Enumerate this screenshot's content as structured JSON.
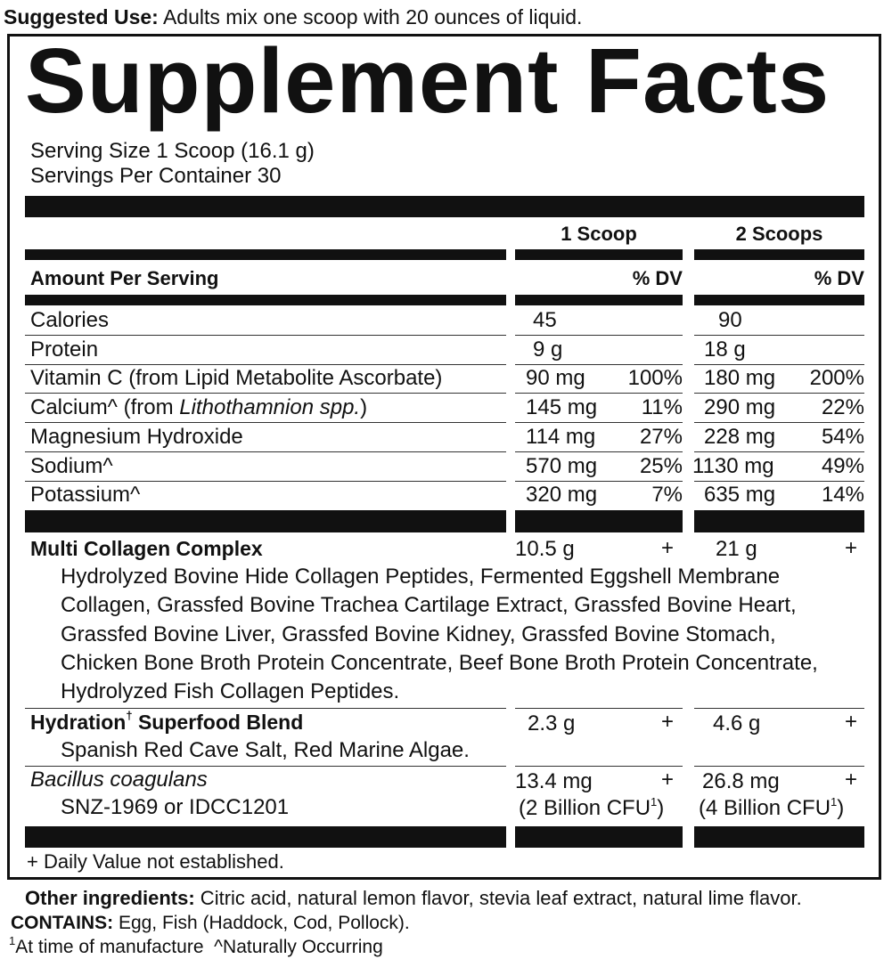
{
  "suggested_use": {
    "label": "Suggested Use:",
    "text": " Adults mix one scoop with 20 ounces of liquid."
  },
  "title": "Supplement Facts",
  "serving_size": "Serving Size 1 Scoop (16.1 g)",
  "servings_per_container": "Servings Per Container 30",
  "columns": {
    "col1": "1 Scoop",
    "col2": "2 Scoops",
    "amount_header": "Amount Per Serving",
    "dv1": "% DV",
    "dv2": "% DV"
  },
  "nutrients": [
    {
      "name": "Calories",
      "amt1": "45",
      "dv1": "",
      "amt2": "90",
      "dv2": ""
    },
    {
      "name": "Protein",
      "amt1": "9 g",
      "dv1": "",
      "amt2": "18 g",
      "dv2": ""
    },
    {
      "name": "Vitamin C (from Lipid Metabolite Ascorbate)",
      "amt1": "90 mg",
      "dv1": "100%",
      "amt2": "180 mg",
      "dv2": "200%"
    },
    {
      "name": "Calcium^ (from ",
      "name_italic": "Lithothamnion spp.",
      "name_end": ")",
      "amt1": "145 mg",
      "dv1": "11%",
      "amt2": "290 mg",
      "dv2": "22%"
    },
    {
      "name": "Magnesium Hydroxide",
      "amt1": "114 mg",
      "dv1": "27%",
      "amt2": "228 mg",
      "dv2": "54%"
    },
    {
      "name": "Sodium^",
      "amt1": "570 mg",
      "dv1": "25%",
      "amt2": "1130 mg",
      "dv2": "49%"
    },
    {
      "name": "Potassium^",
      "amt1": "320 mg",
      "dv1": "7%",
      "amt2": "635 mg",
      "dv2": "14%"
    }
  ],
  "blends": {
    "collagen": {
      "name": "Multi Collagen Complex",
      "amt1": "10.5 g",
      "dv1": "+",
      "amt2": "21 g",
      "dv2": "+",
      "ingredients": [
        "Hydrolyzed Bovine Hide Collagen Peptides, Fermented Eggshell Membrane",
        "Collagen, Grassfed Bovine Trachea Cartilage Extract, Grassfed Bovine Heart,",
        "Grassfed Bovine Liver, Grassfed Bovine Kidney, Grassfed Bovine Stomach,",
        "Chicken Bone Broth Protein Concentrate, Beef Bone Broth Protein Concentrate,",
        "Hydrolyzed Fish Collagen Peptides."
      ]
    },
    "hydration": {
      "name": "Hydration",
      "sup": "†",
      "name_end": " Superfood Blend",
      "amt1": "2.3 g",
      "dv1": "+",
      "amt2": "4.6 g",
      "dv2": "+",
      "ingredients": "Spanish Red Cave Salt, Red Marine Algae."
    },
    "bacillus": {
      "name": "Bacillus coagulans",
      "strain": "SNZ-1969 or IDCC1201",
      "amt1": "13.4 mg",
      "dv1": "+",
      "amt2": "26.8 mg",
      "dv2": "+",
      "cfu1": "(2 Billion CFU",
      "cfu2": "(4 Billion CFU",
      "cfu_sup": "1",
      "cfu_end": ")"
    }
  },
  "dv_note": "+ Daily Value not established.",
  "other_ingredients": {
    "label": "Other ingredients:",
    "text": " Citric acid, natural lemon flavor, stevia leaf extract, natural lime flavor."
  },
  "contains": {
    "label": "CONTAINS:",
    "text": " Egg, Fish (Haddock, Cod, Pollock)."
  },
  "footnotes": {
    "sup": "1",
    "time": "At time of manufacture",
    "naturally": "^Naturally Occurring"
  }
}
